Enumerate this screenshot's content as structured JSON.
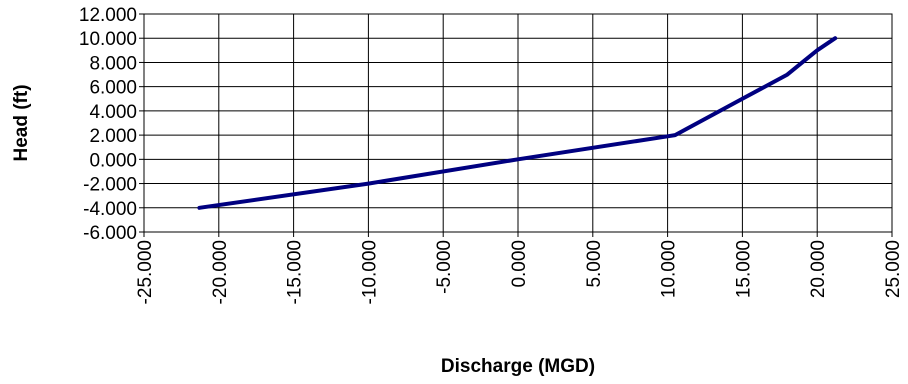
{
  "chart_data": {
    "type": "line",
    "title": "",
    "xlabel": "Discharge (MGD)",
    "ylabel": "Head (ft)",
    "xlim": [
      -25,
      25
    ],
    "ylim": [
      -6,
      12
    ],
    "x_ticks": [
      -25,
      -20,
      -15,
      -10,
      -5,
      0,
      5,
      10,
      15,
      20,
      25
    ],
    "x_tick_labels": [
      "-25.000",
      "-20.000",
      "-15.000",
      "-10.000",
      "-5.000",
      "0.000",
      "5.000",
      "10.000",
      "15.000",
      "20.000",
      "25.000"
    ],
    "y_ticks": [
      -6,
      -4,
      -2,
      0,
      2,
      4,
      6,
      8,
      10,
      12
    ],
    "y_tick_labels": [
      "-6.000",
      "-4.000",
      "-2.000",
      "0.000",
      "2.000",
      "4.000",
      "6.000",
      "8.000",
      "10.000",
      "12.000"
    ],
    "grid": true,
    "legend": "none",
    "series": [
      {
        "color": "#000080",
        "x": [
          -21.3,
          -10.0,
          0.0,
          10.0,
          10.5,
          12.0,
          15.0,
          16.5,
          18.0,
          19.0,
          20.0,
          21.2
        ],
        "y": [
          -4.0,
          -2.0,
          0.0,
          1.9,
          2.0,
          3.0,
          5.0,
          6.0,
          7.0,
          8.0,
          9.0,
          10.0
        ]
      }
    ]
  }
}
